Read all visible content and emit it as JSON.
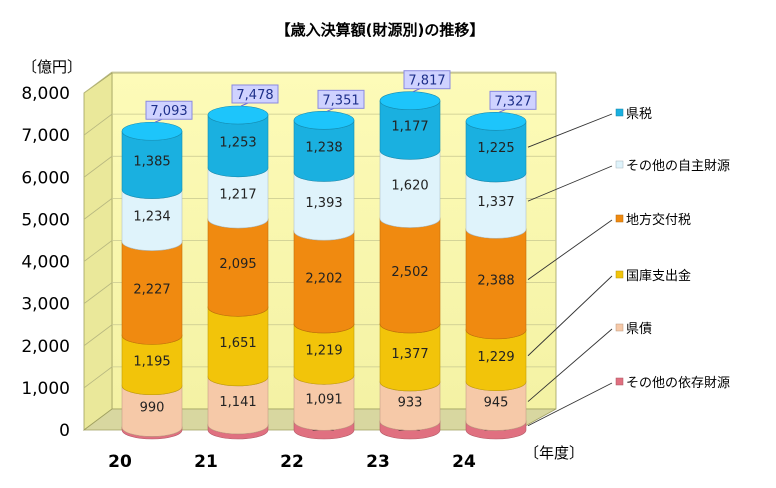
{
  "chart_data": {
    "type": "bar",
    "stacked": true,
    "title": "【歳入決算額(財源別)の推移】",
    "ylabel": "〔億円〕",
    "xlabel": "〔年度〕",
    "ylim": [
      0,
      8000
    ],
    "yticks": [
      "0",
      "1,000",
      "2,000",
      "3,000",
      "4,000",
      "5,000",
      "6,000",
      "7,000",
      "8,000"
    ],
    "grid": true,
    "legend_position": "right",
    "categories": [
      "20",
      "21",
      "22",
      "23",
      "24"
    ],
    "series": [
      {
        "name": "その他の依存財源",
        "values": [
          61,
          121,
          208,
          208,
          203
        ],
        "labels": [
          "61",
          "121",
          "208",
          "208",
          "203"
        ],
        "color": "#e07080"
      },
      {
        "name": "県債",
        "values": [
          990,
          1141,
          1091,
          933,
          945
        ],
        "labels": [
          "990",
          "1,141",
          "1,091",
          "933",
          "945"
        ],
        "color": "#f6c9a8"
      },
      {
        "name": "国庫支出金",
        "values": [
          1195,
          1651,
          1219,
          1377,
          1229
        ],
        "labels": [
          "1,195",
          "1,651",
          "1,219",
          "1,377",
          "1,229"
        ],
        "color": "#f2c40a"
      },
      {
        "name": "地方交付税",
        "values": [
          2227,
          2095,
          2202,
          2502,
          2388
        ],
        "labels": [
          "2,227",
          "2,095",
          "2,202",
          "2,502",
          "2,388"
        ],
        "color": "#f08a10"
      },
      {
        "name": "その他の自主財源",
        "values": [
          1234,
          1217,
          1393,
          1620,
          1337
        ],
        "labels": [
          "1,234",
          "1,217",
          "1,393",
          "1,620",
          "1,337"
        ],
        "color": "#dff3fb"
      },
      {
        "name": "県税",
        "values": [
          1385,
          1253,
          1238,
          1177,
          1225
        ],
        "labels": [
          "1,385",
          "1,253",
          "1,238",
          "1,177",
          "1,225"
        ],
        "color": "#1ab0e0"
      }
    ],
    "totals": [
      "7,093",
      "7,478",
      "7,351",
      "7,817",
      "7,327"
    ],
    "legend_order": [
      "県税",
      "その他の自主財源",
      "地方交付税",
      "国庫支出金",
      "県債",
      "その他の依存財源"
    ]
  }
}
